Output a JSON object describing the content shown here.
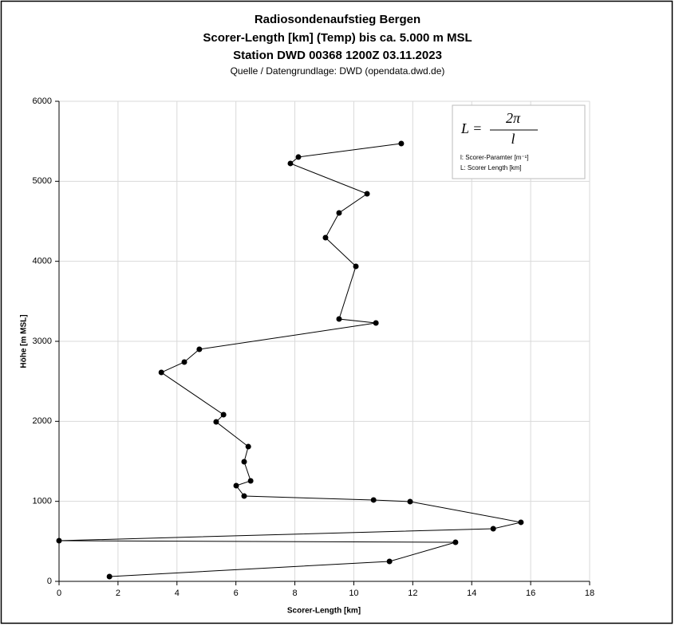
{
  "chart_data": {
    "type": "line",
    "title": "Radiosondenaufstieg Bergen",
    "subtitle_lines": [
      "Scorer-Length [km] (Temp) bis ca. 5.000 m MSL",
      "Station DWD 00368 1200Z 03.11.2023"
    ],
    "source": "Quelle / Datengrundlage: DWD (opendata.dwd.de)",
    "x_label": "Scorer-Length [km]",
    "y_label": "Höhe [m MSL]",
    "x": [
      1.71,
      11.21,
      13.45,
      0,
      14.73,
      15.67,
      11.91,
      10.67,
      6.28,
      6.01,
      6.5,
      6.28,
      6.42,
      5.33,
      5.58,
      3.47,
      4.25,
      4.76,
      10.75,
      9.5,
      10.07,
      9.04,
      9.5,
      10.45,
      7.85,
      8.12,
      11.61
    ],
    "values": [
      60,
      249,
      488,
      508,
      658,
      738,
      997,
      1017,
      1066,
      1196,
      1256,
      1495,
      1684,
      1993,
      2083,
      2611,
      2741,
      2900,
      3229,
      3279,
      3937,
      4296,
      4605,
      4844,
      5223,
      5303,
      5472
    ],
    "color": "#000000",
    "xlim": [
      0,
      18
    ],
    "xticks": [
      0,
      2,
      4,
      6,
      8,
      10,
      12,
      14,
      16,
      18
    ],
    "ylim": [
      0,
      6000
    ],
    "yticks": [
      0,
      1000,
      2000,
      3000,
      4000,
      5000,
      6000
    ],
    "grid": true,
    "annotation": {
      "lhs": "L =",
      "numerator": "2π",
      "denominator": "l",
      "notes": [
        "l: Scorer-Paramter [m⁻¹]",
        "L: Scorer Length [km]"
      ]
    }
  }
}
